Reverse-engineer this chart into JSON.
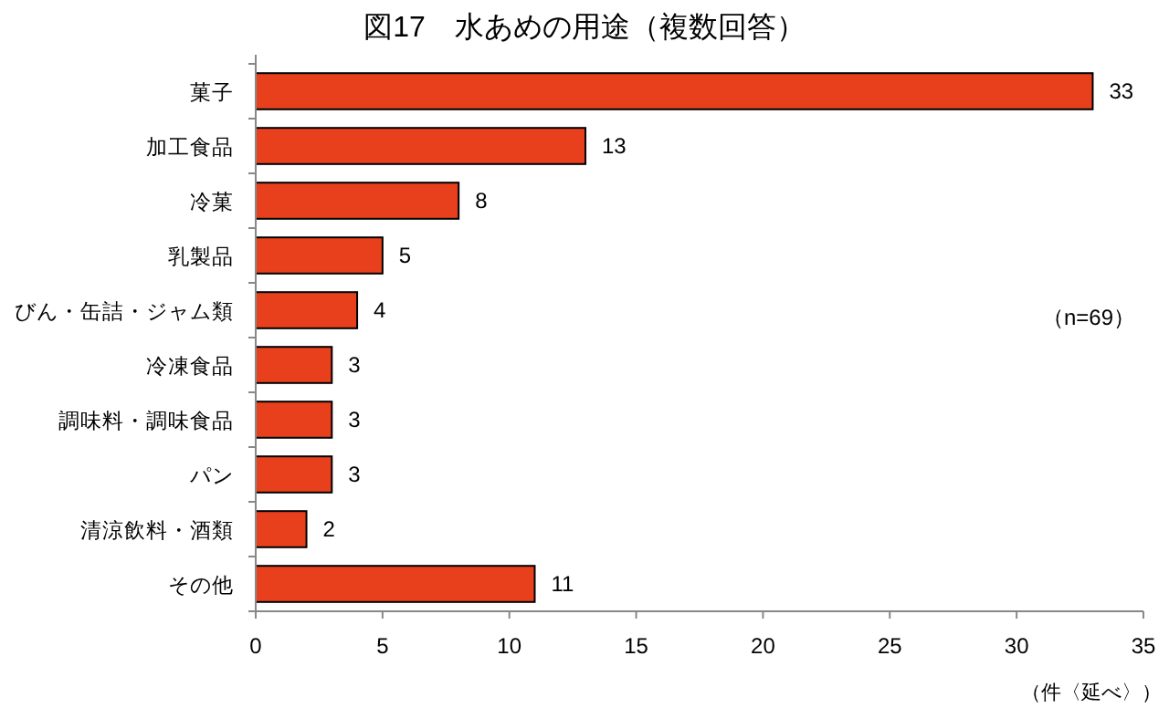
{
  "chart_data": {
    "type": "bar",
    "orientation": "horizontal",
    "title": "図17　水あめの用途（複数回答）",
    "categories": [
      "菓子",
      "加工食品",
      "冷菓",
      "乳製品",
      "びん・缶詰・ジャム類",
      "冷凍食品",
      "調味料・調味食品",
      "パン",
      "清涼飲料・酒類",
      "その他"
    ],
    "values": [
      33,
      13,
      8,
      5,
      4,
      3,
      3,
      3,
      2,
      11
    ],
    "color": "#e8401c",
    "xlim": [
      0,
      35
    ],
    "xticks": [
      0,
      5,
      10,
      15,
      20,
      25,
      30,
      35
    ],
    "xlabel": "（件〈延べ〉）",
    "data_labels": true,
    "annotations": [
      "（n=69）"
    ]
  }
}
